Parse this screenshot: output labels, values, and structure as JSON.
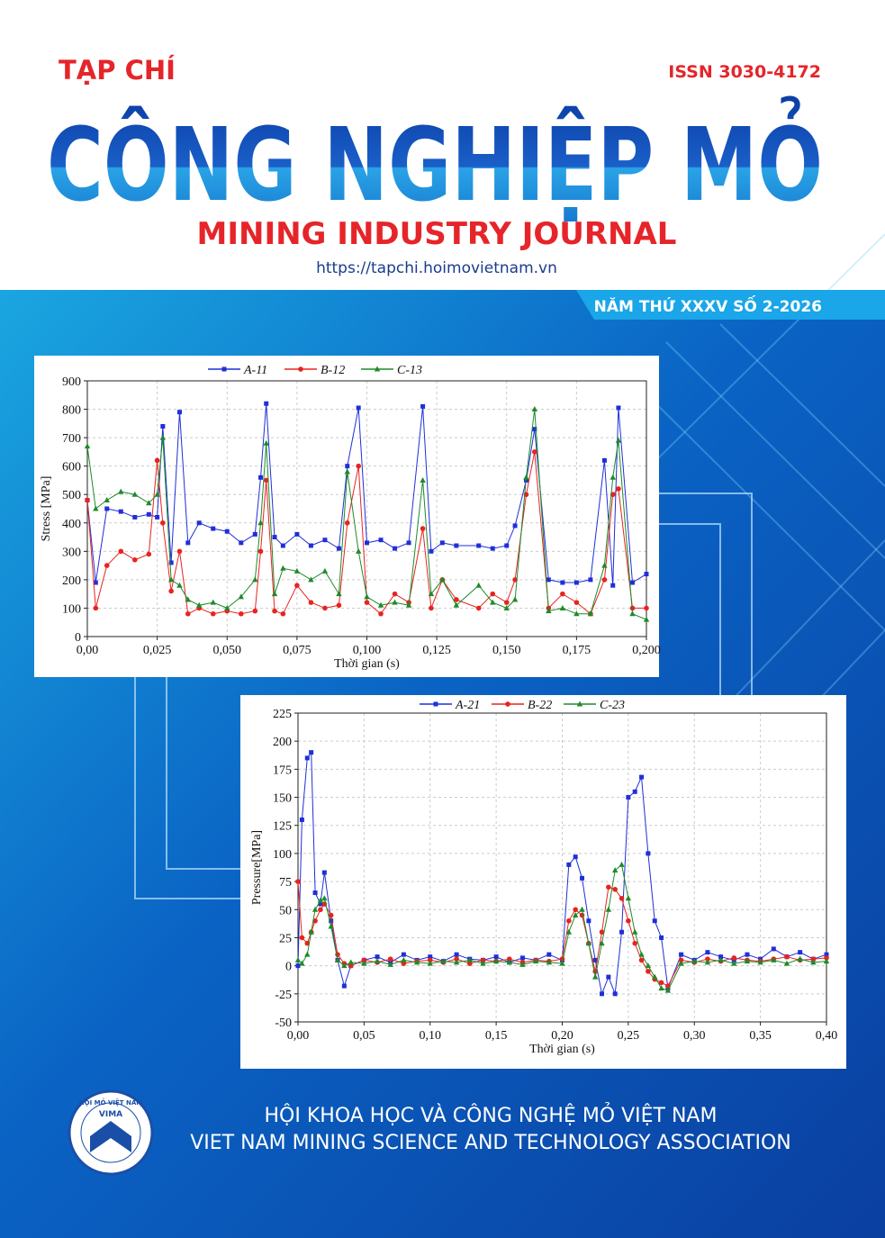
{
  "header": {
    "kicker": "TẠP CHÍ",
    "issn": "ISSN 3030-4172",
    "title": "CÔNG NGHIỆP MỎ",
    "subtitle": "MINING INDUSTRY JOURNAL",
    "url": "https://tapchi.hoimovietnam.vn",
    "issue": "NĂM THỨ XXXV SỐ 2-2026"
  },
  "chart_data": [
    {
      "type": "line",
      "ylabel": "Stress [MPa]",
      "xlabel": "Thời gian (s)",
      "grid": true,
      "xlim": [
        0,
        0.2
      ],
      "ylim": [
        0,
        900
      ],
      "xticks": [
        {
          "value": 0,
          "label": "0,00"
        },
        {
          "value": 0.025,
          "label": "0,025"
        },
        {
          "value": 0.05,
          "label": "0,050"
        },
        {
          "value": 0.075,
          "label": "0,075"
        },
        {
          "value": 0.1,
          "label": "0,100"
        },
        {
          "value": 0.125,
          "label": "0,125"
        },
        {
          "value": 0.15,
          "label": "0,150"
        },
        {
          "value": 0.175,
          "label": "0,175"
        },
        {
          "value": 0.2,
          "label": "0,200"
        }
      ],
      "yticks": [
        0,
        100,
        200,
        300,
        400,
        500,
        600,
        700,
        800,
        900
      ],
      "x": [
        0,
        0.003,
        0.007,
        0.012,
        0.017,
        0.022,
        0.025,
        0.027,
        0.03,
        0.033,
        0.036,
        0.04,
        0.045,
        0.05,
        0.055,
        0.06,
        0.062,
        0.064,
        0.067,
        0.07,
        0.075,
        0.08,
        0.085,
        0.09,
        0.093,
        0.097,
        0.1,
        0.105,
        0.11,
        0.115,
        0.12,
        0.123,
        0.127,
        0.132,
        0.14,
        0.145,
        0.15,
        0.153,
        0.157,
        0.16,
        0.165,
        0.17,
        0.175,
        0.18,
        0.185,
        0.188,
        0.19,
        0.195,
        0.2
      ],
      "series": [
        {
          "name": "A-11",
          "color": "#1f2fd8",
          "marker": "square",
          "values": [
            480,
            190,
            450,
            440,
            420,
            430,
            420,
            740,
            260,
            790,
            330,
            400,
            380,
            370,
            330,
            360,
            560,
            820,
            350,
            320,
            360,
            320,
            340,
            310,
            600,
            805,
            330,
            340,
            310,
            330,
            810,
            300,
            330,
            320,
            320,
            310,
            320,
            390,
            550,
            730,
            200,
            190,
            190,
            200,
            620,
            180,
            805,
            190,
            220
          ]
        },
        {
          "name": "B-12",
          "color": "#e8231f",
          "marker": "circle",
          "values": [
            480,
            100,
            250,
            300,
            270,
            290,
            620,
            400,
            160,
            300,
            80,
            100,
            80,
            90,
            80,
            90,
            300,
            550,
            90,
            80,
            180,
            120,
            100,
            110,
            400,
            600,
            120,
            80,
            150,
            120,
            380,
            100,
            200,
            130,
            100,
            150,
            120,
            200,
            500,
            650,
            100,
            150,
            120,
            80,
            200,
            500,
            520,
            100,
            100
          ]
        },
        {
          "name": "C-13",
          "color": "#1e8a2a",
          "marker": "triangle",
          "values": [
            670,
            450,
            480,
            510,
            500,
            470,
            500,
            700,
            200,
            180,
            130,
            110,
            120,
            100,
            140,
            200,
            400,
            680,
            150,
            240,
            230,
            200,
            230,
            150,
            580,
            300,
            140,
            110,
            120,
            110,
            550,
            150,
            200,
            110,
            180,
            120,
            100,
            130,
            560,
            800,
            90,
            100,
            80,
            80,
            250,
            560,
            690,
            80,
            60
          ]
        }
      ]
    },
    {
      "type": "line",
      "ylabel": "Pressure[MPa]",
      "xlabel": "Thời gian (s)",
      "grid": true,
      "xlim": [
        0,
        0.4
      ],
      "ylim": [
        -50,
        225
      ],
      "xticks": [
        {
          "value": 0,
          "label": "0,00"
        },
        {
          "value": 0.05,
          "label": "0,05"
        },
        {
          "value": 0.1,
          "label": "0,10"
        },
        {
          "value": 0.15,
          "label": "0,15"
        },
        {
          "value": 0.2,
          "label": "0,20"
        },
        {
          "value": 0.25,
          "label": "0,25"
        },
        {
          "value": 0.3,
          "label": "0,30"
        },
        {
          "value": 0.35,
          "label": "0,35"
        },
        {
          "value": 0.4,
          "label": "0,40"
        }
      ],
      "yticks": [
        -50,
        -25,
        0,
        25,
        50,
        75,
        100,
        125,
        150,
        175,
        200,
        225
      ],
      "x": [
        0,
        0.003,
        0.007,
        0.01,
        0.013,
        0.017,
        0.02,
        0.025,
        0.03,
        0.035,
        0.04,
        0.05,
        0.06,
        0.07,
        0.08,
        0.09,
        0.1,
        0.11,
        0.12,
        0.13,
        0.14,
        0.15,
        0.16,
        0.17,
        0.18,
        0.19,
        0.2,
        0.205,
        0.21,
        0.215,
        0.22,
        0.225,
        0.23,
        0.235,
        0.24,
        0.245,
        0.25,
        0.255,
        0.26,
        0.265,
        0.27,
        0.275,
        0.28,
        0.29,
        0.3,
        0.31,
        0.32,
        0.33,
        0.34,
        0.35,
        0.36,
        0.37,
        0.38,
        0.39,
        0.4
      ],
      "series": [
        {
          "name": "A-21",
          "color": "#1f2fd8",
          "marker": "square",
          "values": [
            0,
            130,
            185,
            190,
            65,
            55,
            83,
            40,
            5,
            -18,
            0,
            5,
            8,
            3,
            10,
            5,
            8,
            4,
            10,
            6,
            5,
            8,
            3,
            7,
            5,
            10,
            5,
            90,
            97,
            78,
            40,
            5,
            -25,
            -10,
            -25,
            30,
            150,
            155,
            168,
            100,
            40,
            25,
            -20,
            10,
            5,
            12,
            8,
            5,
            10,
            6,
            15,
            8,
            12,
            6,
            10
          ]
        },
        {
          "name": "B-22",
          "color": "#e8231f",
          "marker": "circle",
          "values": [
            75,
            25,
            20,
            30,
            40,
            50,
            55,
            45,
            10,
            2,
            0,
            5,
            3,
            6,
            2,
            4,
            5,
            3,
            6,
            2,
            5,
            4,
            6,
            3,
            5,
            4,
            6,
            40,
            50,
            45,
            20,
            -5,
            30,
            70,
            68,
            60,
            40,
            20,
            5,
            -5,
            -12,
            -15,
            -18,
            5,
            3,
            6,
            4,
            7,
            5,
            4,
            6,
            8,
            5,
            6,
            7
          ]
        },
        {
          "name": "C-23",
          "color": "#1e8a2a",
          "marker": "triangle",
          "values": [
            5,
            2,
            10,
            30,
            50,
            58,
            60,
            35,
            5,
            0,
            3,
            2,
            4,
            1,
            5,
            3,
            2,
            4,
            3,
            5,
            2,
            4,
            3,
            1,
            4,
            3,
            2,
            30,
            45,
            50,
            20,
            -10,
            20,
            50,
            85,
            90,
            60,
            30,
            10,
            0,
            -10,
            -20,
            -22,
            2,
            4,
            3,
            5,
            2,
            4,
            3,
            5,
            2,
            6,
            3,
            4
          ]
        }
      ]
    }
  ],
  "footer": {
    "logo_ring": "HỘI MỎ VIỆT NAM",
    "logo_abbr": "VIMA",
    "name_vi": "HỘI KHOA HỌC VÀ CÔNG NGHỆ MỎ VIỆT NAM",
    "name_en": "VIET NAM MINING SCIENCE AND TECHNOLOGY ASSOCIATION"
  }
}
